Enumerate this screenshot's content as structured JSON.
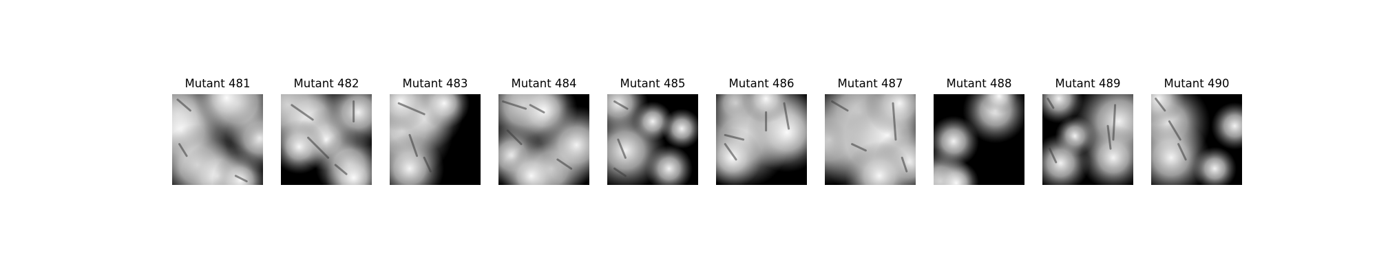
{
  "colors": {
    "background": "#ffffff",
    "title_text": "#000000",
    "image_dark": "#000000",
    "image_light": "#ffffff"
  },
  "panels": [
    {
      "title": "Mutant 481",
      "blobs": [
        [
          0.06,
          0.22,
          0.05,
          0.42
        ],
        [
          0.1,
          0.4,
          0.08,
          0.48
        ],
        [
          0.28,
          0.78,
          0.1,
          0.35
        ],
        [
          0.5,
          0.9,
          0.1,
          0.3
        ],
        [
          0.75,
          0.95,
          0.06,
          0.25
        ],
        [
          0.96,
          0.48,
          0.05,
          0.32
        ],
        [
          0.72,
          0.1,
          0.08,
          0.4
        ],
        [
          0.6,
          0.04,
          0.06,
          0.28
        ]
      ],
      "strokes": [
        [
          0.06,
          0.06,
          0.2,
          0.18
        ],
        [
          0.08,
          0.55,
          0.16,
          0.68
        ],
        [
          0.7,
          0.9,
          0.82,
          0.96
        ]
      ]
    },
    {
      "title": "Mutant 482",
      "blobs": [
        [
          0.08,
          0.12,
          0.05,
          0.45
        ],
        [
          0.32,
          0.28,
          0.06,
          0.4
        ],
        [
          0.5,
          0.5,
          0.04,
          0.3
        ],
        [
          0.75,
          0.78,
          0.05,
          0.32
        ],
        [
          0.8,
          0.92,
          0.03,
          0.28
        ],
        [
          0.85,
          0.2,
          0.08,
          0.3
        ],
        [
          0.2,
          0.58,
          0.05,
          0.25
        ]
      ],
      "strokes": [
        [
          0.12,
          0.12,
          0.35,
          0.28
        ],
        [
          0.3,
          0.48,
          0.52,
          0.7
        ],
        [
          0.6,
          0.78,
          0.72,
          0.88
        ],
        [
          0.8,
          0.08,
          0.8,
          0.3
        ]
      ]
    },
    {
      "title": "Mutant 483",
      "blobs": [
        [
          0.14,
          0.4,
          0.06,
          0.5
        ],
        [
          0.38,
          0.2,
          0.03,
          0.4
        ],
        [
          0.22,
          0.82,
          0.04,
          0.34
        ],
        [
          0.6,
          0.1,
          0.02,
          0.26
        ],
        [
          0.12,
          0.08,
          0.03,
          0.3
        ]
      ],
      "strokes": [
        [
          0.1,
          0.1,
          0.38,
          0.22
        ],
        [
          0.22,
          0.45,
          0.3,
          0.68
        ],
        [
          0.38,
          0.7,
          0.45,
          0.85
        ]
      ]
    },
    {
      "title": "Mutant 484",
      "blobs": [
        [
          0.28,
          0.12,
          0.06,
          0.42
        ],
        [
          0.5,
          0.18,
          0.03,
          0.34
        ],
        [
          0.15,
          0.68,
          0.05,
          0.3
        ],
        [
          0.58,
          0.82,
          0.06,
          0.35
        ],
        [
          0.86,
          0.56,
          0.07,
          0.36
        ],
        [
          0.36,
          0.9,
          0.05,
          0.28
        ]
      ],
      "strokes": [
        [
          0.05,
          0.08,
          0.3,
          0.16
        ],
        [
          0.35,
          0.12,
          0.5,
          0.2
        ],
        [
          0.1,
          0.4,
          0.25,
          0.55
        ],
        [
          0.65,
          0.72,
          0.8,
          0.82
        ]
      ]
    },
    {
      "title": "Mutant 485",
      "blobs": [
        [
          0.12,
          0.1,
          0.03,
          0.3
        ],
        [
          0.2,
          0.62,
          0.05,
          0.4
        ],
        [
          0.82,
          0.38,
          0.0,
          0.22
        ],
        [
          0.68,
          0.82,
          0.0,
          0.26
        ],
        [
          0.5,
          0.3,
          0.04,
          0.18
        ]
      ],
      "strokes": [
        [
          0.08,
          0.08,
          0.22,
          0.16
        ],
        [
          0.12,
          0.5,
          0.2,
          0.7
        ],
        [
          0.08,
          0.82,
          0.2,
          0.9
        ]
      ]
    },
    {
      "title": "Mutant 486",
      "blobs": [
        [
          0.22,
          0.1,
          0.02,
          0.28
        ],
        [
          0.62,
          0.3,
          0.06,
          0.45
        ],
        [
          0.28,
          0.5,
          0.06,
          0.48
        ],
        [
          0.78,
          0.42,
          0.04,
          0.4
        ],
        [
          0.18,
          0.7,
          0.03,
          0.3
        ],
        [
          0.55,
          0.05,
          0.03,
          0.24
        ]
      ],
      "strokes": [
        [
          0.1,
          0.45,
          0.3,
          0.5
        ],
        [
          0.55,
          0.2,
          0.55,
          0.4
        ],
        [
          0.75,
          0.1,
          0.8,
          0.38
        ],
        [
          0.1,
          0.55,
          0.22,
          0.72
        ]
      ]
    },
    {
      "title": "Mutant 487",
      "blobs": [
        [
          0.05,
          0.5,
          0.1,
          0.4
        ],
        [
          0.38,
          0.2,
          0.12,
          0.42
        ],
        [
          0.5,
          0.55,
          0.1,
          0.48
        ],
        [
          0.7,
          0.45,
          0.06,
          0.42
        ],
        [
          0.82,
          0.1,
          0.08,
          0.3
        ],
        [
          0.92,
          0.75,
          0.06,
          0.32
        ],
        [
          0.6,
          0.9,
          0.08,
          0.3
        ]
      ],
      "strokes": [
        [
          0.08,
          0.08,
          0.25,
          0.18
        ],
        [
          0.75,
          0.1,
          0.78,
          0.5
        ],
        [
          0.3,
          0.55,
          0.45,
          0.62
        ],
        [
          0.85,
          0.7,
          0.9,
          0.85
        ]
      ]
    },
    {
      "title": "Mutant 488",
      "blobs": [
        [
          0.22,
          0.52,
          0.0,
          0.28
        ],
        [
          0.68,
          0.18,
          0.04,
          0.32
        ],
        [
          0.72,
          0.02,
          0.0,
          0.2
        ],
        [
          0.08,
          0.96,
          0.05,
          0.3
        ],
        [
          0.25,
          0.98,
          0.03,
          0.22
        ]
      ],
      "strokes": []
    },
    {
      "title": "Mutant 489",
      "blobs": [
        [
          0.36,
          0.46,
          0.0,
          0.22
        ],
        [
          0.84,
          0.3,
          0.06,
          0.45
        ],
        [
          0.2,
          0.76,
          0.04,
          0.28
        ],
        [
          0.18,
          0.05,
          0.03,
          0.24
        ],
        [
          0.78,
          0.7,
          0.04,
          0.32
        ]
      ],
      "strokes": [
        [
          0.06,
          0.05,
          0.12,
          0.15
        ],
        [
          0.8,
          0.12,
          0.78,
          0.5
        ],
        [
          0.72,
          0.35,
          0.75,
          0.6
        ],
        [
          0.08,
          0.6,
          0.15,
          0.75
        ]
      ]
    },
    {
      "title": "Mutant 490",
      "blobs": [
        [
          0.18,
          0.32,
          0.05,
          0.42
        ],
        [
          0.22,
          0.7,
          0.05,
          0.38
        ],
        [
          0.7,
          0.82,
          0.0,
          0.24
        ],
        [
          0.92,
          0.35,
          0.02,
          0.24
        ],
        [
          0.08,
          0.05,
          0.03,
          0.26
        ]
      ],
      "strokes": [
        [
          0.05,
          0.05,
          0.15,
          0.18
        ],
        [
          0.2,
          0.3,
          0.32,
          0.5
        ],
        [
          0.3,
          0.55,
          0.38,
          0.72
        ]
      ]
    }
  ]
}
